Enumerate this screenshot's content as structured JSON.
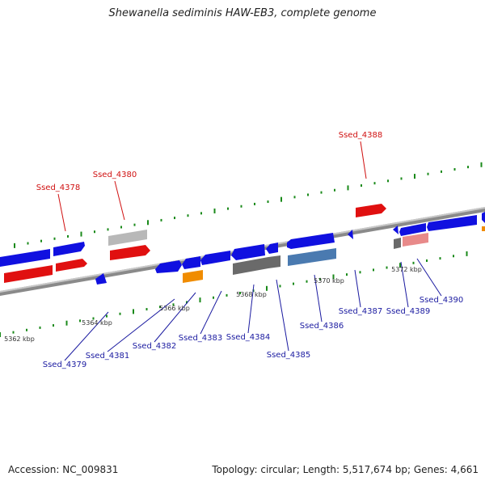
{
  "title": "Shewanella sediminis HAW-EB3, complete genome",
  "footer": {
    "accession": "Accession: NC_009831",
    "topology": "Topology: circular; Length: 5,517,674 bp; Genes: 4,661"
  },
  "colors": {
    "blue": "#1010e0",
    "red": "#e01010",
    "gray_light": "#b8b8b8",
    "gray_dark": "#6a6a6a",
    "steel": "#4a7ab0",
    "orange": "#f08c00",
    "pink": "#e88a8a",
    "green": "#1a8a1a",
    "backbone": "#8a8a8a",
    "label_red": "#d01010",
    "label_blue": "#1a1aa0"
  },
  "kbp_labels": [
    "5362 kbp",
    "5364 kbp",
    "5366 kbp",
    "5368 kbp",
    "5370 kbp",
    "5372 kbp"
  ],
  "gene_labels": [
    "Ssed_4378",
    "Ssed_4379",
    "Ssed_4380",
    "Ssed_4381",
    "Ssed_4382",
    "Ssed_4383",
    "Ssed_4384",
    "Ssed_4385",
    "Ssed_4386",
    "Ssed_4387",
    "Ssed_4388",
    "Ssed_4389",
    "Ssed_4390"
  ]
}
